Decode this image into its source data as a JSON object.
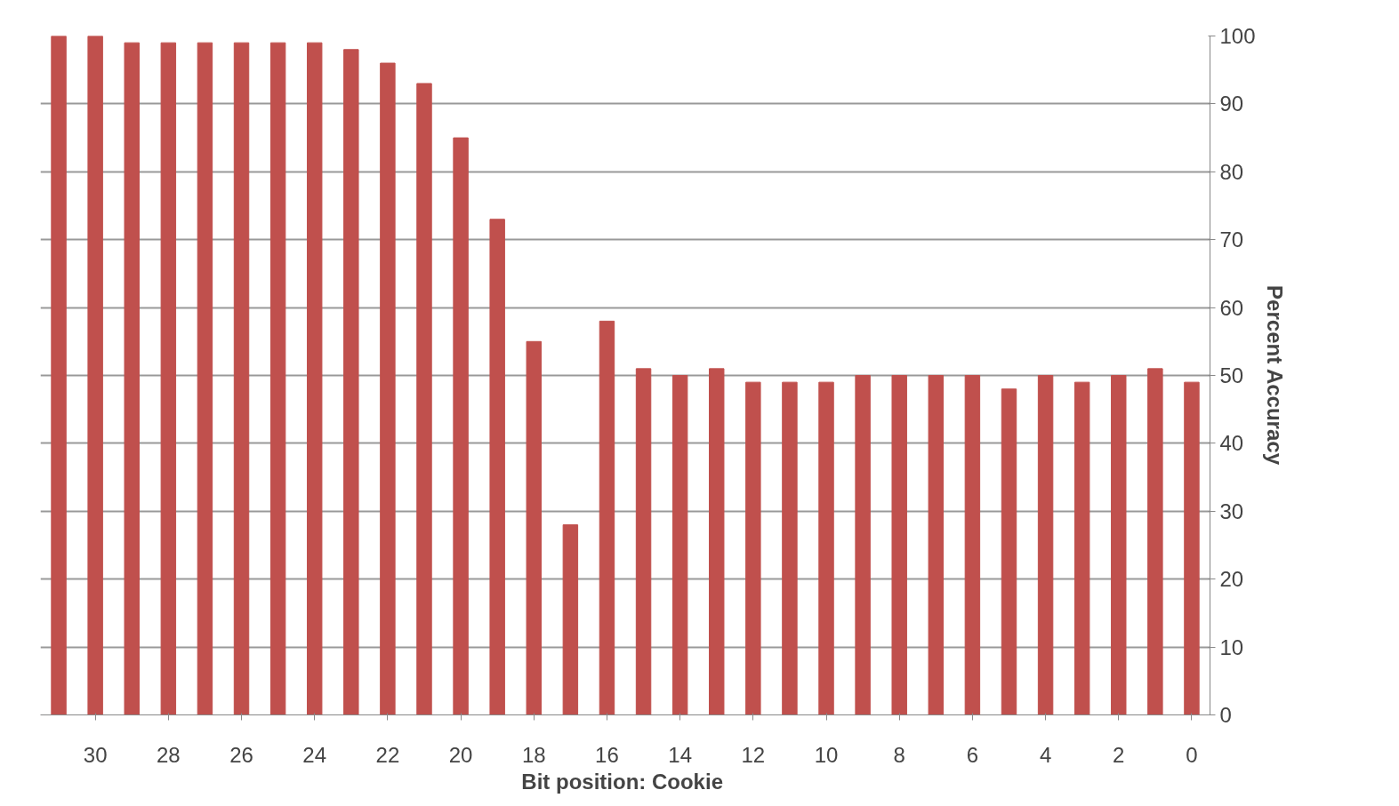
{
  "chart_data": {
    "type": "bar",
    "xlabel": "Bit position:  Cookie",
    "ylabel": "Percent Accuracy",
    "categories": [
      null,
      "30",
      null,
      "28",
      null,
      "26",
      null,
      "24",
      null,
      "22",
      null,
      "20",
      null,
      "18",
      null,
      "16",
      null,
      "14",
      null,
      "12",
      null,
      "10",
      null,
      "8",
      null,
      "6",
      null,
      "4",
      null,
      "2",
      null,
      "0"
    ],
    "values": [
      100,
      100,
      99,
      99,
      99,
      99,
      99,
      99,
      98,
      96,
      93,
      85,
      73,
      55,
      28,
      58,
      51,
      50,
      51,
      49,
      49,
      49,
      50,
      50,
      50,
      50,
      48,
      50,
      49,
      50,
      51,
      49
    ],
    "color": "#c0504d",
    "ylim": [
      0,
      100
    ],
    "yticks": [
      0,
      10,
      20,
      30,
      40,
      50,
      60,
      70,
      80,
      90,
      100
    ],
    "grid": "y"
  }
}
